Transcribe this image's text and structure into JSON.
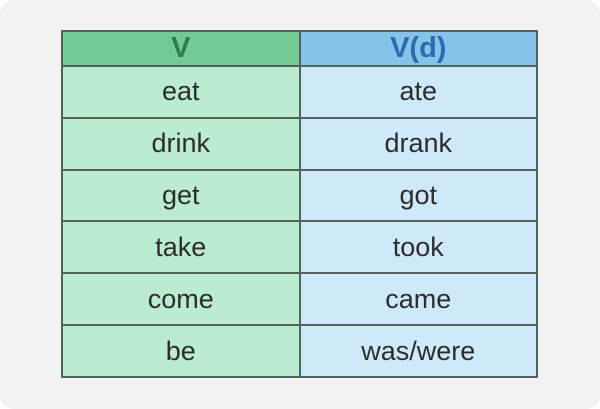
{
  "table": {
    "headers": [
      {
        "label": "V"
      },
      {
        "label": "V(d)"
      }
    ],
    "rows": [
      {
        "base": "eat",
        "past": "ate"
      },
      {
        "base": "drink",
        "past": "drank"
      },
      {
        "base": "get",
        "past": "got"
      },
      {
        "base": "take",
        "past": "took"
      },
      {
        "base": "come",
        "past": "came"
      },
      {
        "base": "be",
        "past": "was/were"
      }
    ]
  },
  "colors": {
    "canvas_background": "#f2f2f2",
    "border": "#54635a",
    "header_green_bg": "#71cb92",
    "header_green_text": "#2e7d51",
    "header_blue_bg": "#85c3e8",
    "header_blue_text": "#2a6cb0",
    "cell_green_bg": "#bcecd0",
    "cell_blue_bg": "#cde9fa",
    "body_text": "#2d2d2d"
  }
}
